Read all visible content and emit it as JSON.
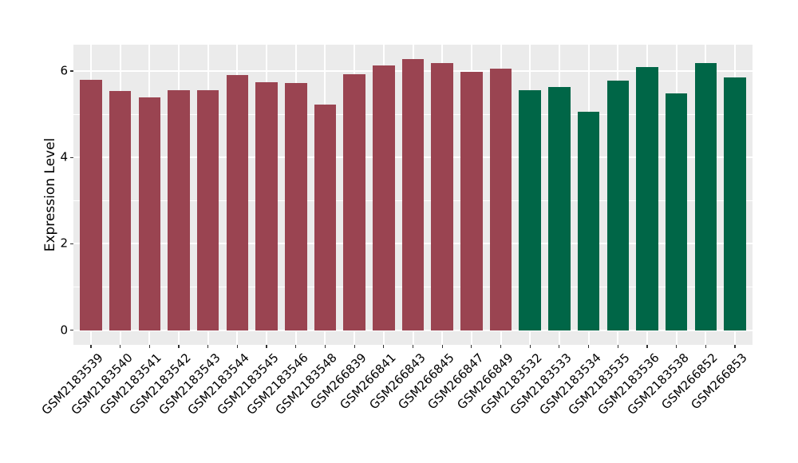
{
  "chart_data": {
    "type": "bar",
    "title": "",
    "xlabel": "",
    "ylabel": "Expression Level",
    "ylim": [
      -0.33,
      6.61
    ],
    "y_ticks": {
      "values": [
        0,
        2,
        4,
        6
      ],
      "labels": [
        "0",
        "2",
        "4",
        "6"
      ]
    },
    "y_minor_ticks": [
      1,
      3,
      5
    ],
    "grid": {
      "background": "#EBEBEB",
      "line_color": "#FFFFFF",
      "vertical_lines": "category-centers",
      "legend": "none"
    },
    "group_colors": {
      "group1": "#9A4451",
      "group2": "#006647"
    },
    "bars": [
      {
        "label": "GSM2183539",
        "value": 5.79,
        "group": "group1"
      },
      {
        "label": "GSM2183540",
        "value": 5.54,
        "group": "group1"
      },
      {
        "label": "GSM2183541",
        "value": 5.39,
        "group": "group1"
      },
      {
        "label": "GSM2183542",
        "value": 5.56,
        "group": "group1"
      },
      {
        "label": "GSM2183543",
        "value": 5.55,
        "group": "group1"
      },
      {
        "label": "GSM2183544",
        "value": 5.91,
        "group": "group1"
      },
      {
        "label": "GSM2183545",
        "value": 5.75,
        "group": "group1"
      },
      {
        "label": "GSM2183546",
        "value": 5.72,
        "group": "group1"
      },
      {
        "label": "GSM2183548",
        "value": 5.23,
        "group": "group1"
      },
      {
        "label": "GSM266839",
        "value": 5.92,
        "group": "group1"
      },
      {
        "label": "GSM266841",
        "value": 6.13,
        "group": "group1"
      },
      {
        "label": "GSM266843",
        "value": 6.28,
        "group": "group1"
      },
      {
        "label": "GSM266845",
        "value": 6.18,
        "group": "group1"
      },
      {
        "label": "GSM266847",
        "value": 5.98,
        "group": "group1"
      },
      {
        "label": "GSM266849",
        "value": 6.06,
        "group": "group1"
      },
      {
        "label": "GSM2183532",
        "value": 5.55,
        "group": "group2"
      },
      {
        "label": "GSM2183533",
        "value": 5.63,
        "group": "group2"
      },
      {
        "label": "GSM2183534",
        "value": 5.05,
        "group": "group2"
      },
      {
        "label": "GSM2183535",
        "value": 5.77,
        "group": "group2"
      },
      {
        "label": "GSM2183536",
        "value": 6.09,
        "group": "group2"
      },
      {
        "label": "GSM2183538",
        "value": 5.49,
        "group": "group2"
      },
      {
        "label": "GSM266852",
        "value": 6.18,
        "group": "group2"
      },
      {
        "label": "GSM266853",
        "value": 5.86,
        "group": "group2"
      }
    ]
  }
}
